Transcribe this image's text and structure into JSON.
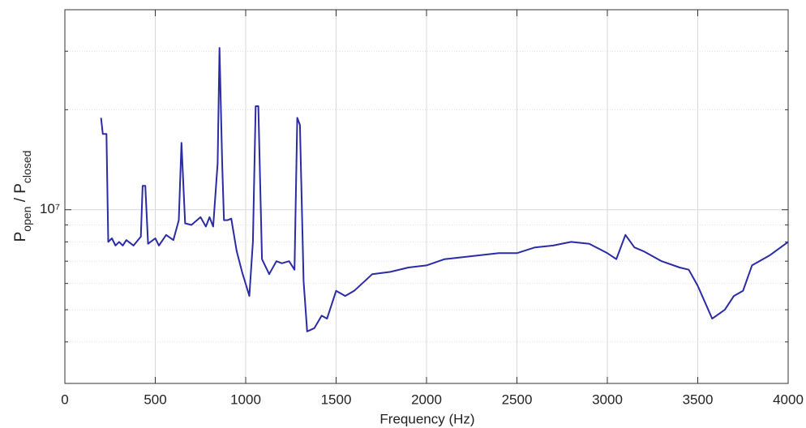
{
  "chart_data": {
    "type": "line",
    "xlabel": "Frequency (Hz)",
    "ylabel_parts": [
      {
        "text": "P"
      },
      {
        "text": "open",
        "sub": true
      },
      {
        "text": " / P"
      },
      {
        "text": "closed",
        "sub": true
      }
    ],
    "x": [
      200,
      210,
      230,
      240,
      260,
      280,
      300,
      320,
      340,
      380,
      420,
      430,
      445,
      460,
      500,
      520,
      560,
      600,
      630,
      645,
      665,
      700,
      750,
      780,
      800,
      820,
      845,
      855,
      870,
      880,
      900,
      920,
      950,
      980,
      1020,
      1040,
      1055,
      1070,
      1090,
      1130,
      1170,
      1200,
      1240,
      1270,
      1285,
      1300,
      1320,
      1340,
      1380,
      1420,
      1450,
      1500,
      1550,
      1600,
      1700,
      1800,
      1900,
      2000,
      2100,
      2200,
      2300,
      2400,
      2500,
      2600,
      2700,
      2800,
      2900,
      3000,
      3050,
      3100,
      3150,
      3200,
      3300,
      3400,
      3450,
      3500,
      3580,
      3650,
      3700,
      3750,
      3800,
      3900,
      4000
    ],
    "series": [
      {
        "color": "#2b2ba6",
        "values": [
          18900000,
          16900000,
          16900000,
          8000000,
          8200000,
          7800000,
          8000000,
          7800000,
          8100000,
          7800000,
          8300000,
          11800000,
          11800000,
          7900000,
          8200000,
          7800000,
          8400000,
          8100000,
          9300000,
          15900000,
          9100000,
          9000000,
          9500000,
          8900000,
          9500000,
          8900000,
          13800000,
          30700000,
          13800000,
          9300000,
          9300000,
          9400000,
          7500000,
          6500000,
          5500000,
          8000000,
          20500000,
          20500000,
          7100000,
          6400000,
          7000000,
          6900000,
          7000000,
          6600000,
          18900000,
          18000000,
          6100000,
          4300000,
          4400000,
          4800000,
          4700000,
          5700000,
          5500000,
          5700000,
          6400000,
          6500000,
          6700000,
          6800000,
          7100000,
          7200000,
          7300000,
          7400000,
          7400000,
          7700000,
          7800000,
          8000000,
          7900000,
          7400000,
          7100000,
          8400000,
          7700000,
          7500000,
          7000000,
          6700000,
          6600000,
          5900000,
          4700000,
          5000000,
          5500000,
          5700000,
          6800000,
          7300000,
          8000000
        ]
      }
    ],
    "xlim": [
      0,
      4000
    ],
    "xticks": [
      0,
      500,
      1000,
      1500,
      2000,
      2500,
      3000,
      3500,
      4000
    ],
    "ylim": [
      3000000,
      40000000
    ],
    "ylog": true,
    "yticks": [
      {
        "value": 10000000,
        "label": "10⁷"
      }
    ],
    "yminor": [
      4000000,
      5000000,
      6000000,
      7000000,
      8000000,
      9000000,
      20000000,
      30000000
    ],
    "grid": true
  }
}
